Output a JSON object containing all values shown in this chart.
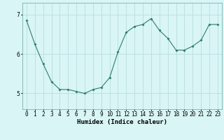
{
  "x": [
    0,
    1,
    2,
    3,
    4,
    5,
    6,
    7,
    8,
    9,
    10,
    11,
    12,
    13,
    14,
    15,
    16,
    17,
    18,
    19,
    20,
    21,
    22,
    23
  ],
  "y": [
    6.85,
    6.25,
    5.75,
    5.3,
    5.1,
    5.1,
    5.05,
    5.0,
    5.1,
    5.15,
    5.4,
    6.05,
    6.55,
    6.7,
    6.75,
    6.9,
    6.6,
    6.4,
    6.1,
    6.1,
    6.2,
    6.35,
    6.75,
    6.75
  ],
  "line_color": "#2e7d6e",
  "marker": "D",
  "marker_size": 2.0,
  "bg_color": "#d9f5f5",
  "grid_color": "#b8dede",
  "xlabel": "Humidex (Indice chaleur)",
  "ylim": [
    4.6,
    7.3
  ],
  "yticks": [
    5,
    6,
    7
  ],
  "xlabel_fontsize": 6.5,
  "tick_fontsize": 5.5
}
